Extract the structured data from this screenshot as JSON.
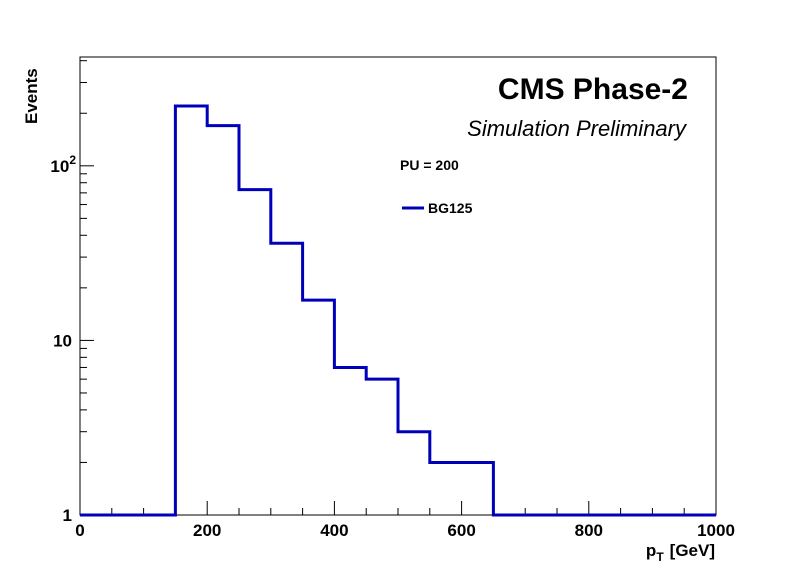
{
  "chart_data": {
    "type": "histogram",
    "experiment": "CMS Phase-2",
    "subtitle": "Simulation Preliminary",
    "annotation": "PU = 200",
    "xlabel_base": "p",
    "xlabel_sub": "T",
    "xlabel_unit": "[GeV]",
    "ylabel": "Events",
    "xlim": [
      0,
      1000
    ],
    "ylim": [
      1,
      420
    ],
    "y_scale": "log",
    "grid": false,
    "legend_position": "top-right",
    "x_ticks": [
      {
        "value": 0,
        "label": "0"
      },
      {
        "value": 200,
        "label": "200"
      },
      {
        "value": 400,
        "label": "400"
      },
      {
        "value": 600,
        "label": "600"
      },
      {
        "value": 800,
        "label": "800"
      },
      {
        "value": 1000,
        "label": "1000"
      }
    ],
    "y_ticks": [
      {
        "value": 1,
        "label": "1",
        "exp": ""
      },
      {
        "value": 10,
        "label": "10",
        "exp": ""
      },
      {
        "value": 100,
        "label": "10",
        "exp": "2"
      }
    ],
    "bin_edges": [
      0,
      50,
      100,
      150,
      200,
      250,
      300,
      350,
      400,
      450,
      500,
      550,
      600,
      650,
      700,
      750,
      800,
      850,
      900,
      950,
      1000
    ],
    "series": [
      {
        "name": "BG125",
        "color": "#0000bb",
        "values": [
          1,
          1,
          1,
          220,
          170,
          73,
          36,
          17,
          7,
          6,
          3,
          2,
          2,
          1,
          1,
          1,
          1,
          1,
          1,
          1
        ]
      }
    ]
  }
}
